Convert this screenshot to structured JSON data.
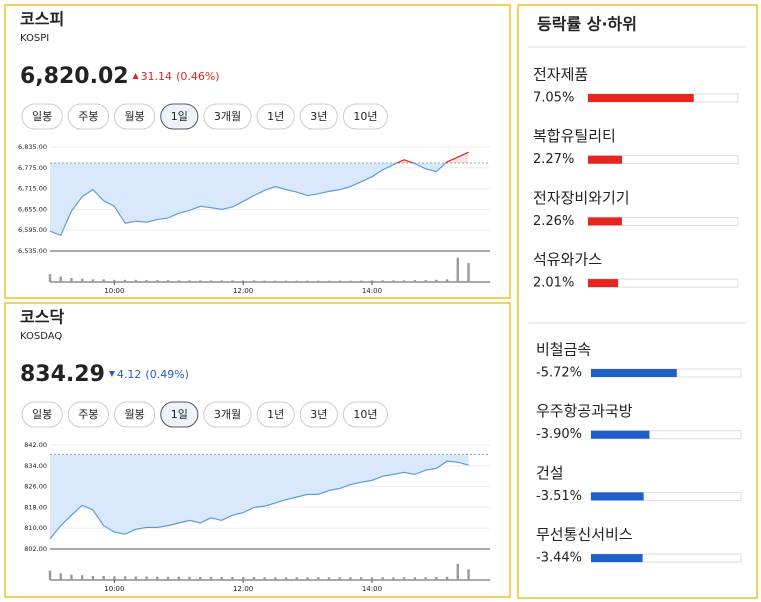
{
  "panels": [
    {
      "title": "코스피",
      "subtitle": "KOSPI",
      "price": "6,820.02",
      "change": "31.14",
      "change_pct": "(0.46%)",
      "direction": "up",
      "tabs": [
        "일봉",
        "주봉",
        "월봉",
        "1일",
        "3개월",
        "1년",
        "3년",
        "10년"
      ],
      "active_tab": 3,
      "chart": {
        "type": "line",
        "x": [
          "09:00",
          "09:10",
          "09:20",
          "09:30",
          "09:40",
          "09:50",
          "10:00",
          "10:10",
          "10:20",
          "10:30",
          "10:40",
          "10:50",
          "11:00",
          "11:10",
          "11:20",
          "11:30",
          "11:40",
          "11:50",
          "12:00",
          "12:10",
          "12:20",
          "12:30",
          "12:40",
          "12:50",
          "13:00",
          "13:10",
          "13:20",
          "13:30",
          "13:40",
          "13:50",
          "14:00",
          "14:10",
          "14:20",
          "14:30",
          "14:40",
          "14:50",
          "15:00",
          "15:10",
          "15:20",
          "15:30"
        ],
        "values": [
          6592,
          6580,
          6650,
          6692,
          6712,
          6680,
          6664,
          6615,
          6621,
          6618,
          6626,
          6630,
          6644,
          6652,
          6664,
          6660,
          6655,
          6662,
          6678,
          6695,
          6710,
          6721,
          6712,
          6705,
          6695,
          6700,
          6707,
          6712,
          6721,
          6735,
          6749,
          6769,
          6784,
          6798,
          6787,
          6772,
          6764,
          6792,
          6806,
          6820.02
        ],
        "volume": [
          30,
          20,
          15,
          12,
          10,
          10,
          8,
          8,
          8,
          7,
          7,
          7,
          6,
          6,
          6,
          6,
          6,
          6,
          6,
          6,
          5,
          5,
          5,
          5,
          5,
          5,
          5,
          5,
          5,
          5,
          6,
          6,
          6,
          6,
          7,
          7,
          8,
          10,
          90,
          70
        ],
        "volume_ylim": [
          0,
          100
        ],
        "reference": 6788.88,
        "xlim": [
          "09:00",
          "15:50"
        ],
        "xticks": [
          "10:00",
          "12:00",
          "14:00"
        ],
        "ylim": [
          6535,
          6835
        ],
        "yticks": [
          {
            "value": 6835,
            "label": "6,835.00"
          },
          {
            "value": 6775,
            "label": "6,775.00"
          },
          {
            "value": 6715,
            "label": "6,715.00"
          },
          {
            "value": 6655,
            "label": "6,655.00"
          },
          {
            "value": 6595,
            "label": "6,595.00"
          },
          {
            "value": 6535,
            "label": "6,535.00"
          }
        ]
      }
    },
    {
      "title": "코스닥",
      "subtitle": "KOSDAQ",
      "price": "834.29",
      "change": "4.12",
      "change_pct": "(0.49%)",
      "direction": "down",
      "tabs": [
        "일봉",
        "주봉",
        "월봉",
        "1일",
        "3개월",
        "1년",
        "3년",
        "10년"
      ],
      "active_tab": 3,
      "chart": {
        "type": "line",
        "x": [
          "09:00",
          "09:10",
          "09:20",
          "09:30",
          "09:40",
          "09:50",
          "10:00",
          "10:10",
          "10:20",
          "10:30",
          "10:40",
          "10:50",
          "11:00",
          "11:10",
          "11:20",
          "11:30",
          "11:40",
          "11:50",
          "12:00",
          "12:10",
          "12:20",
          "12:30",
          "12:40",
          "12:50",
          "13:00",
          "13:10",
          "13:20",
          "13:30",
          "13:40",
          "13:50",
          "14:00",
          "14:10",
          "14:20",
          "14:30",
          "14:40",
          "14:50",
          "15:00",
          "15:10",
          "15:20",
          "15:30"
        ],
        "values": [
          805.9,
          811,
          815,
          818.8,
          817,
          811,
          808.5,
          807.7,
          809.6,
          810.3,
          810.3,
          811,
          812,
          813,
          812,
          814,
          813,
          815,
          816,
          818,
          818.5,
          819.7,
          821,
          822,
          823,
          823,
          824.5,
          825.3,
          826.8,
          827.7,
          828.4,
          830,
          830.7,
          831.5,
          830.7,
          832.3,
          833,
          835.8,
          835.4,
          834.29
        ],
        "volume": [
          35,
          25,
          20,
          18,
          15,
          15,
          14,
          14,
          13,
          13,
          12,
          12,
          12,
          12,
          11,
          11,
          11,
          11,
          11,
          11,
          10,
          10,
          10,
          10,
          10,
          10,
          10,
          10,
          10,
          10,
          10,
          10,
          10,
          10,
          10,
          10,
          11,
          12,
          60,
          40
        ],
        "volume_ylim": [
          0,
          100
        ],
        "reference": 838.41,
        "xlim": [
          "09:00",
          "15:50"
        ],
        "xticks": [
          "10:00",
          "12:00",
          "14:00"
        ],
        "ylim": [
          802,
          842
        ],
        "yticks": [
          {
            "value": 842,
            "label": "842.00"
          },
          {
            "value": 834,
            "label": "834.00"
          },
          {
            "value": 826,
            "label": "826.00"
          },
          {
            "value": 818,
            "label": "818.00"
          },
          {
            "value": 810,
            "label": "810.00"
          },
          {
            "value": 802,
            "label": "802.00"
          }
        ]
      }
    }
  ],
  "ranking": {
    "title": "등락률 상·하위",
    "xlim": [
      0,
      10
    ],
    "up_color": "#e8241e",
    "down_color": "#1f5fcc",
    "gainers": [
      {
        "name": "전자제품",
        "value": 7.05,
        "value_label": "7.05%"
      },
      {
        "name": "복합유틸리티",
        "value": 2.27,
        "value_label": "2.27%"
      },
      {
        "name": "전자장비와기기",
        "value": 2.26,
        "value_label": "2.26%"
      },
      {
        "name": "석유와가스",
        "value": 2.01,
        "value_label": "2.01%"
      }
    ],
    "losers": [
      {
        "name": "비철금속",
        "value": -5.72,
        "value_label": "-5.72%"
      },
      {
        "name": "우주항공과국방",
        "value": -3.9,
        "value_label": "-3.90%"
      },
      {
        "name": "건설",
        "value": -3.51,
        "value_label": "-3.51%"
      },
      {
        "name": "무선통신서비스",
        "value": -3.44,
        "value_label": "-3.44%"
      }
    ]
  }
}
